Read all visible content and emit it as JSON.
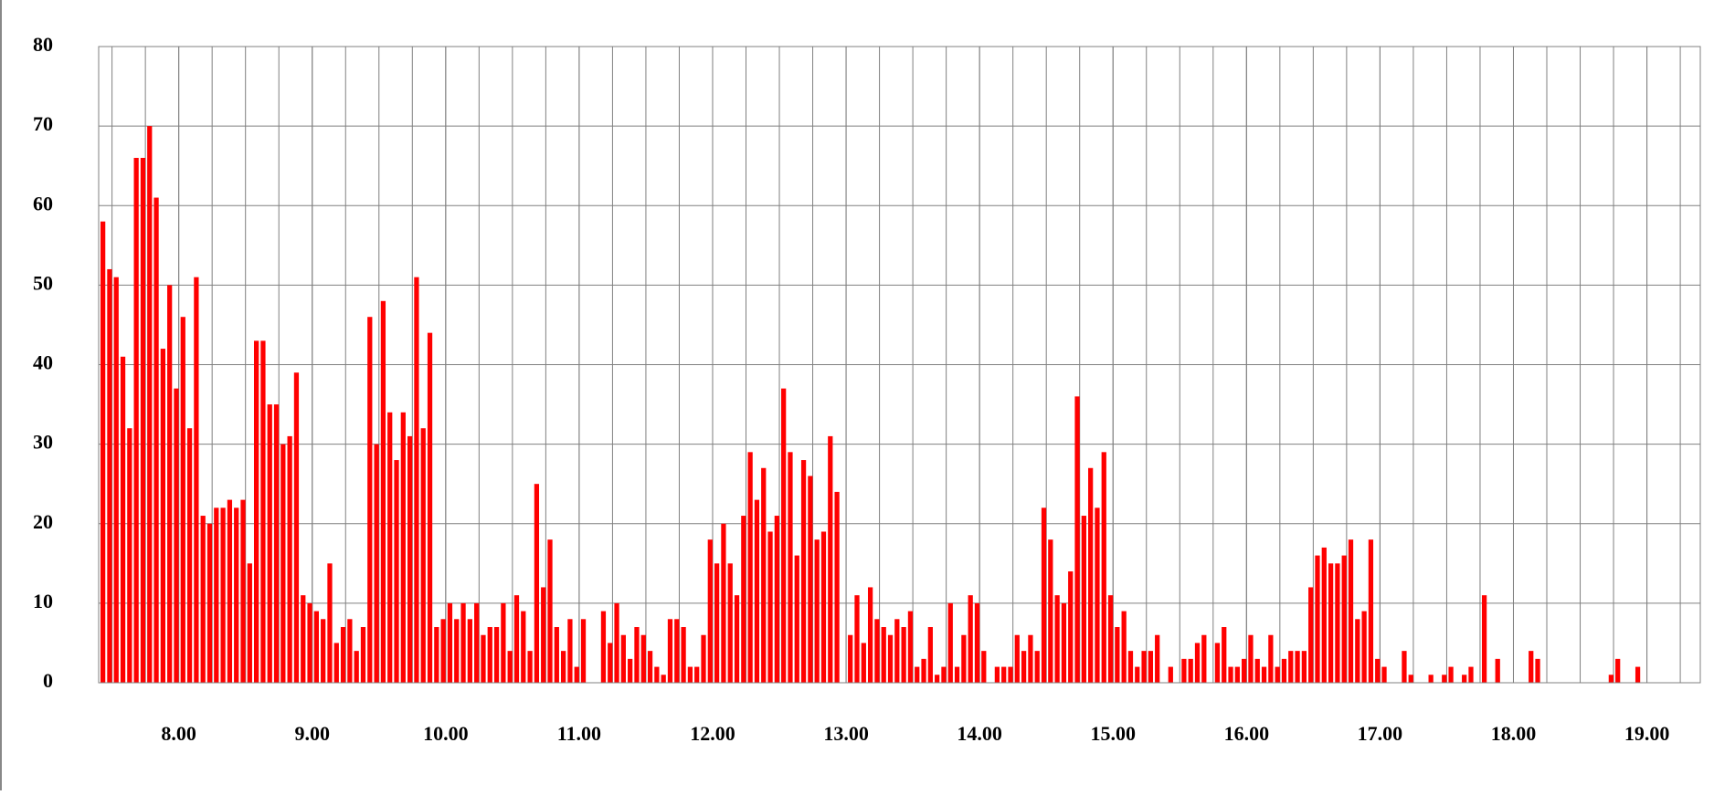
{
  "chart_data": {
    "type": "bar",
    "color": "#ff0000",
    "grid": true,
    "x": [
      444,
      447,
      450,
      453,
      456,
      459,
      462,
      465,
      468,
      471,
      474,
      477,
      480,
      483,
      486,
      489,
      492,
      495,
      498,
      501,
      504,
      507,
      510,
      513,
      516,
      519,
      522,
      525,
      528,
      531,
      534,
      537,
      540,
      543,
      546,
      549,
      552,
      555,
      558,
      561,
      564,
      567,
      570,
      573,
      576,
      579,
      582,
      585,
      588,
      591,
      594,
      597,
      600,
      603,
      606,
      609,
      612,
      615,
      618,
      621,
      624,
      627,
      630,
      633,
      636,
      639,
      642,
      645,
      648,
      651,
      654,
      657,
      660,
      663,
      666,
      669,
      672,
      675,
      678,
      681,
      684,
      687,
      690,
      693,
      696,
      699,
      702,
      705,
      708,
      711,
      714,
      717,
      720,
      723,
      726,
      729,
      732,
      735,
      738,
      741,
      744,
      747,
      750,
      753,
      756,
      759,
      762,
      765,
      768,
      771,
      774,
      777,
      780,
      783,
      786,
      789,
      792,
      795,
      798,
      801,
      804,
      807,
      810,
      813,
      816,
      819,
      822,
      825,
      828,
      831,
      834,
      837,
      840,
      843,
      846,
      849,
      852,
      855,
      858,
      861,
      864,
      867,
      870,
      873,
      876,
      879,
      882,
      885,
      888,
      891,
      894,
      897,
      900,
      903,
      906,
      909,
      912,
      915,
      918,
      921,
      924,
      927,
      930,
      933,
      936,
      939,
      942,
      945,
      948,
      951,
      954,
      957,
      960,
      963,
      966,
      969,
      972,
      975,
      978,
      981,
      984,
      987,
      990,
      993,
      996,
      999,
      1002,
      1005,
      1008,
      1011,
      1014,
      1017,
      1020,
      1023,
      1026,
      1029,
      1032,
      1035,
      1038,
      1041,
      1044,
      1047,
      1050,
      1053,
      1056,
      1059,
      1062,
      1065,
      1068,
      1071,
      1074,
      1077,
      1080,
      1083,
      1086,
      1089,
      1092,
      1095,
      1098,
      1101,
      1104,
      1107,
      1110,
      1113,
      1116,
      1119,
      1122,
      1125,
      1128,
      1131,
      1134,
      1137,
      1140,
      1143,
      1146,
      1149,
      1152,
      1155,
      1158,
      1161
    ],
    "values": [
      58,
      52,
      51,
      41,
      32,
      66,
      66,
      70,
      61,
      42,
      50,
      37,
      46,
      32,
      51,
      21,
      20,
      22,
      22,
      23,
      22,
      23,
      15,
      43,
      43,
      35,
      35,
      30,
      31,
      39,
      11,
      10,
      9,
      8,
      15,
      5,
      7,
      8,
      4,
      7,
      46,
      30,
      48,
      34,
      28,
      34,
      31,
      51,
      32,
      44,
      7,
      8,
      10,
      8,
      10,
      8,
      10,
      6,
      7,
      7,
      10,
      4,
      11,
      9,
      4,
      25,
      12,
      18,
      7,
      4,
      8,
      2,
      8,
      0,
      0,
      9,
      5,
      10,
      6,
      3,
      7,
      6,
      4,
      2,
      1,
      8,
      8,
      7,
      2,
      2,
      6,
      18,
      15,
      20,
      15,
      11,
      21,
      29,
      23,
      27,
      19,
      21,
      37,
      29,
      16,
      28,
      26,
      18,
      19,
      31,
      24,
      0,
      6,
      11,
      5,
      12,
      8,
      7,
      6,
      8,
      7,
      9,
      2,
      3,
      7,
      1,
      2,
      10,
      2,
      6,
      11,
      10,
      4,
      0,
      2,
      2,
      2,
      6,
      4,
      6,
      4,
      22,
      18,
      11,
      10,
      14,
      36,
      21,
      27,
      22,
      29,
      11,
      7,
      9,
      4,
      2,
      4,
      4,
      6,
      0,
      2,
      0,
      3,
      3,
      5,
      6,
      0,
      5,
      7,
      2,
      2,
      3,
      6,
      3,
      2,
      6,
      2,
      3,
      4,
      4,
      4,
      12,
      16,
      17,
      15,
      15,
      16,
      18,
      8,
      9,
      18,
      3,
      2,
      0,
      0,
      4,
      1,
      0,
      0,
      1,
      0,
      1,
      2,
      0,
      1,
      2,
      0,
      11,
      0,
      3,
      0,
      0,
      0,
      0,
      4,
      3,
      0,
      0,
      0,
      0,
      0,
      0,
      0,
      0,
      0,
      0,
      1,
      3,
      0,
      0,
      2,
      0,
      0,
      0,
      0,
      0,
      0,
      0,
      0,
      0
    ],
    "xlim": [
      444,
      1164
    ],
    "xticks": [
      {
        "value": 480,
        "label": "8.00"
      },
      {
        "value": 540,
        "label": "9.00"
      },
      {
        "value": 600,
        "label": "10.00"
      },
      {
        "value": 660,
        "label": "11.00"
      },
      {
        "value": 720,
        "label": "12.00"
      },
      {
        "value": 780,
        "label": "13.00"
      },
      {
        "value": 840,
        "label": "14.00"
      },
      {
        "value": 900,
        "label": "15.00"
      },
      {
        "value": 960,
        "label": "16.00"
      },
      {
        "value": 1020,
        "label": "17.00"
      },
      {
        "value": 1080,
        "label": "18.00"
      },
      {
        "value": 1140,
        "label": "19.00"
      }
    ],
    "ylim": [
      0,
      80
    ],
    "yticks": [
      0,
      10,
      20,
      30,
      40,
      50,
      60,
      70,
      80
    ]
  }
}
